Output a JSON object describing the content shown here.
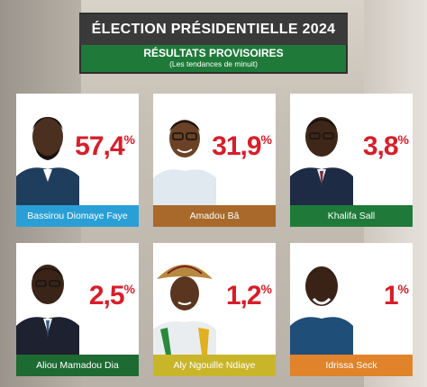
{
  "header": {
    "title": "ÉLECTION PRÉSIDENTIELLE 2024",
    "subtitle": "RÉSULTATS PROVISOIRES",
    "subnote": "(Les tendances de minuit)"
  },
  "candidates": [
    {
      "name": "Bassirou Diomaye Faye",
      "percent": "57,4",
      "sign": "%",
      "bar_color": "#2a9fd6"
    },
    {
      "name": "Amadou Bâ",
      "percent": "31,9",
      "sign": "%",
      "bar_color": "#a8692b"
    },
    {
      "name": "Khalifa Sall",
      "percent": "3,8",
      "sign": "%",
      "bar_color": "#1f7a3a"
    },
    {
      "name": "Aliou Mamadou Dia",
      "percent": "2,5",
      "sign": "%",
      "bar_color": "#1e6a33"
    },
    {
      "name": "Aly Ngouille Ndiaye",
      "percent": "1,2",
      "sign": "%",
      "bar_color": "#c9b52a"
    },
    {
      "name": "Idrissa Seck",
      "percent": "1",
      "sign": "%",
      "bar_color": "#e0832a"
    }
  ],
  "colors": {
    "percent_red": "#d81e2a",
    "header_dark": "#3a3a3a",
    "header_green": "#1f7a3a"
  }
}
